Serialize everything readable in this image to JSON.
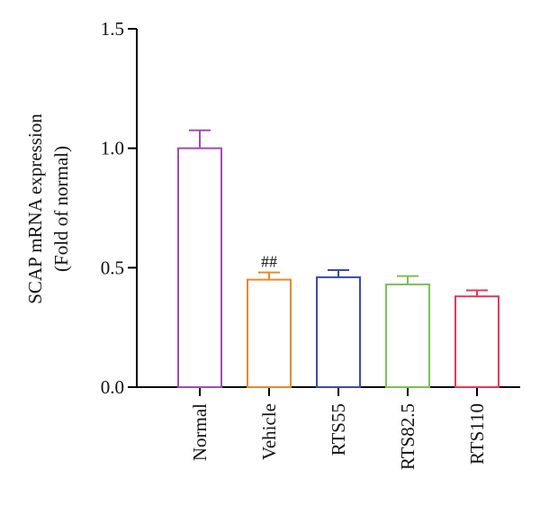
{
  "chart_data": {
    "type": "bar",
    "categories": [
      "Normal",
      "Vehicle",
      "RTS55",
      "RTS82.5",
      "RTS110"
    ],
    "values": [
      1.0,
      0.45,
      0.46,
      0.43,
      0.38
    ],
    "errors": [
      0.075,
      0.03,
      0.03,
      0.035,
      0.025
    ],
    "colors": [
      "#a24bb0",
      "#e58a2f",
      "#3d4ba8",
      "#79bf55",
      "#e63a55"
    ],
    "ylabel_lines": [
      "SCAP mRNA expression",
      "(Fold of normal)"
    ],
    "ylim": [
      0,
      1.5
    ],
    "yticks": [
      0.0,
      0.5,
      1.0,
      1.5
    ],
    "ytick_labels": [
      "0.0",
      "0.5",
      "1.0",
      "1.5"
    ],
    "grid": false,
    "annotations": [
      {
        "category_index": 1,
        "text": "##"
      }
    ]
  }
}
